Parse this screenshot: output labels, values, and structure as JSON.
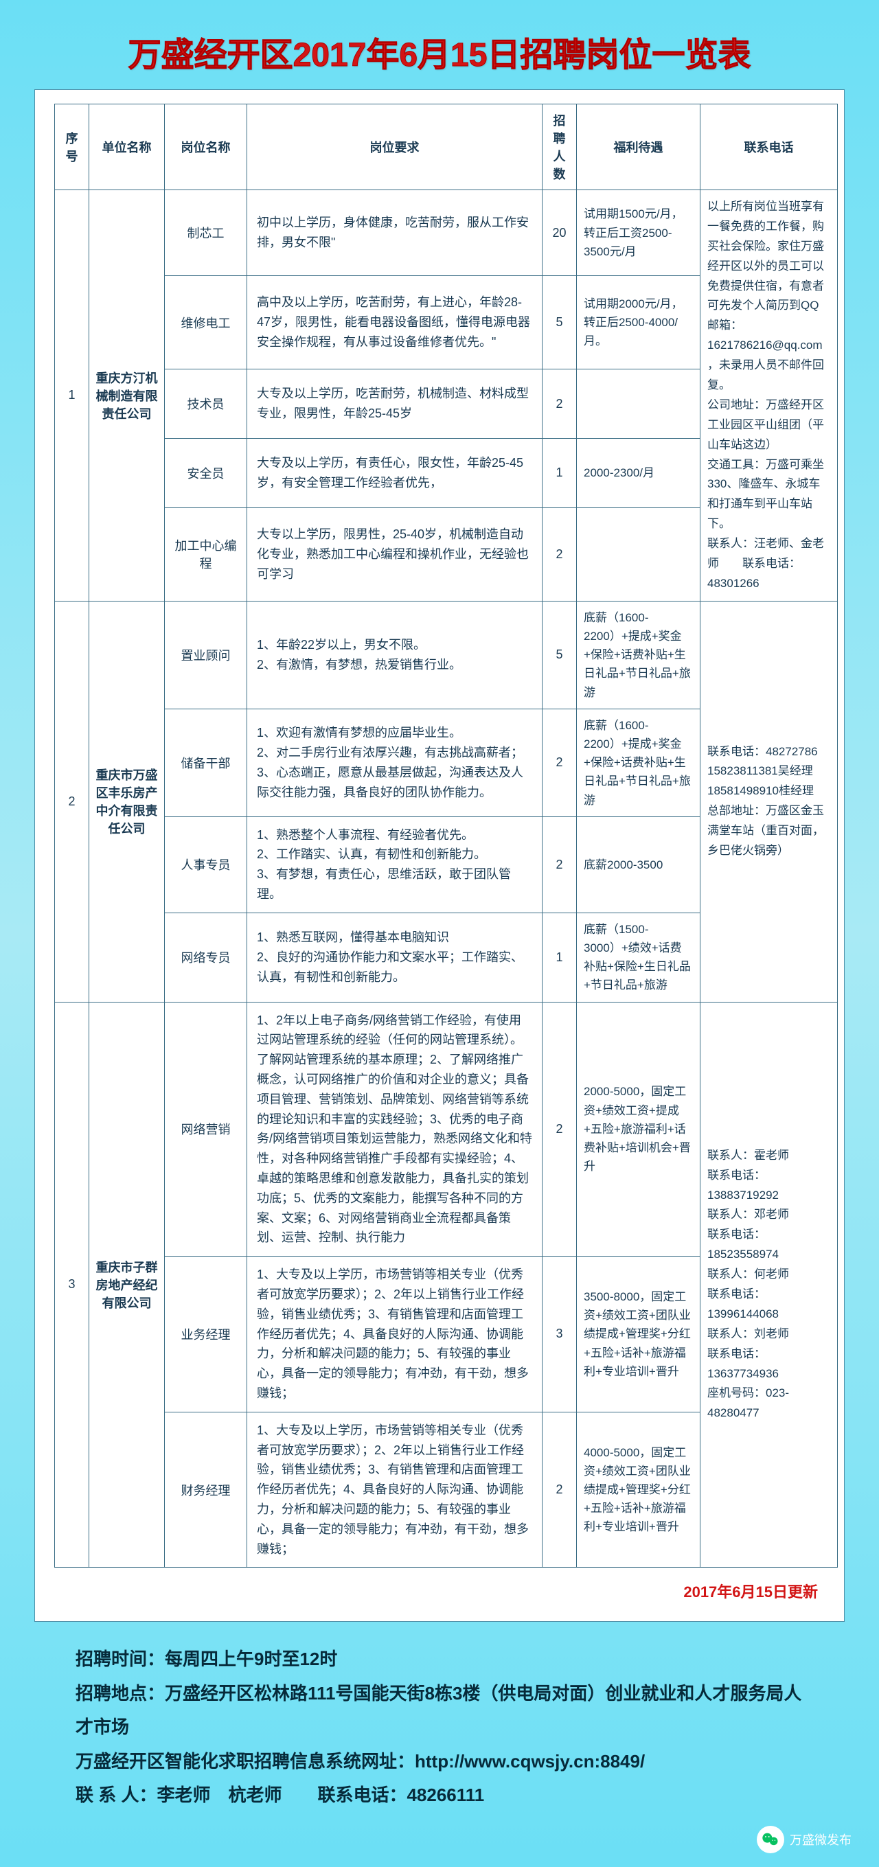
{
  "title": "万盛经开区2017年6月15日招聘岗位一览表",
  "headers": {
    "seq": "序号",
    "company": "单位名称",
    "position": "岗位名称",
    "requirement": "岗位要求",
    "count": "招聘人数",
    "benefit": "福利待遇",
    "contact": "联系电话"
  },
  "groups": [
    {
      "seq": "1",
      "company": "重庆方汀机械制造有限责任公司",
      "contact": "以上所有岗位当班享有一餐免费的工作餐，购买社会保险。家住万盛经开区以外的员工可以免费提供住宿，有意者可先发个人简历到QQ邮箱：1621786216@qq.com，未录用人员不邮件回复。\n公司地址：万盛经开区工业园区平山组团（平山车站这边）\n交通工具：万盛可乘坐330、隆盛车、永城车和打通车到平山车站下。\n联系人：汪老师、金老师　　联系电话：48301266",
      "rows": [
        {
          "position": "制芯工",
          "requirement": "初中以上学历，身体健康，吃苦耐劳，服从工作安排，男女不限\"",
          "count": "20",
          "benefit": "试用期1500元/月，转正后工资2500-3500元/月"
        },
        {
          "position": "维修电工",
          "requirement": "高中及以上学历，吃苦耐劳，有上进心，年龄28-47岁，限男性，能看电器设备图纸，懂得电源电器安全操作规程，有从事过设备维修者优先。\"",
          "count": "5",
          "benefit": "试用期2000元/月，转正后2500-4000/月。"
        },
        {
          "position": "技术员",
          "requirement": "大专及以上学历，吃苦耐劳，机械制造、材料成型专业，限男性，年龄25-45岁",
          "count": "2",
          "benefit": ""
        },
        {
          "position": "安全员",
          "requirement": "大专及以上学历，有责任心，限女性，年龄25-45岁，有安全管理工作经验者优先，",
          "count": "1",
          "benefit": "2000-2300/月"
        },
        {
          "position": "加工中心编程",
          "requirement": "大专以上学历，限男性，25-40岁，机械制造自动化专业，熟悉加工中心编程和操机作业，无经验也可学习",
          "count": "2",
          "benefit": ""
        }
      ]
    },
    {
      "seq": "2",
      "company": "重庆市万盛区丰乐房产中介有限责任公司",
      "contact": "联系电话：48272786\n15823811381吴经理\n18581498910桂经理\n总部地址：万盛区金玉满堂车站（重百对面，乡巴佬火锅旁）",
      "rows": [
        {
          "position": "置业顾问",
          "requirement": "1、年龄22岁以上，男女不限。\n2、有激情，有梦想，热爱销售行业。",
          "count": "5",
          "benefit": "底薪（1600-2200）+提成+奖金+保险+话费补贴+生日礼品+节日礼品+旅游"
        },
        {
          "position": "储备干部",
          "requirement": "1、欢迎有激情有梦想的应届毕业生。\n2、对二手房行业有浓厚兴趣，有志挑战高薪者；\n3、心态端正，愿意从最基层做起，沟通表达及人际交往能力强，具备良好的团队协作能力。",
          "count": "2",
          "benefit": "底薪（1600-2200）+提成+奖金+保险+话费补贴+生日礼品+节日礼品+旅游"
        },
        {
          "position": "人事专员",
          "requirement": "1、熟悉整个人事流程、有经验者优先。\n2、工作踏实、认真，有韧性和创新能力。\n3、有梦想，有责任心，思维活跃，敢于团队管理。",
          "count": "2",
          "benefit": "底薪2000-3500"
        },
        {
          "position": "网络专员",
          "requirement": "1、熟悉互联网，懂得基本电脑知识\n2、良好的沟通协作能力和文案水平；工作踏实、认真，有韧性和创新能力。",
          "count": "1",
          "benefit": "底薪（1500-3000）+绩效+话费补贴+保险+生日礼品+节日礼品+旅游"
        }
      ]
    },
    {
      "seq": "3",
      "company": "重庆市子群房地产经纪有限公司",
      "contact": "联系人：霍老师\n联系电话：13883719292\n联系人：邓老师\n联系电话：18523558974\n联系人：何老师\n联系电话：13996144068\n联系人：刘老师\n联系电话：13637734936\n座机号码：023-48280477",
      "rows": [
        {
          "position": "网络营销",
          "requirement": "1、2年以上电子商务/网络营销工作经验，有使用过网站管理系统的经验（任何的网站管理系统）。了解网站管理系统的基本原理；2、了解网络推广概念，认可网络推广的价值和对企业的意义；具备项目管理、营销策划、品牌策划、网络营销等系统的理论知识和丰富的实践经验；3、优秀的电子商务/网络营销项目策划运营能力，熟悉网络文化和特性，对各种网络营销推广手段都有实操经验；4、卓越的策略思维和创意发散能力，具备扎实的策划功底；5、优秀的文案能力，能撰写各种不同的方案、文案；6、对网络营销商业全流程都具备策划、运营、控制、执行能力",
          "count": "2",
          "benefit": "2000-5000，固定工资+绩效工资+提成+五险+旅游福利+话费补贴+培训机会+晋升"
        },
        {
          "position": "业务经理",
          "requirement": "1、大专及以上学历，市场营销等相关专业（优秀者可放宽学历要求）；2、2年以上销售行业工作经验，销售业绩优秀；3、有销售管理和店面管理工作经历者优先；4、具备良好的人际沟通、协调能力，分析和解决问题的能力；5、有较强的事业心，具备一定的领导能力；有冲劲，有干劲，想多赚钱；",
          "count": "3",
          "benefit": "3500-8000，固定工资+绩效工资+团队业绩提成+管理奖+分红+五险+话补+旅游福利+专业培训+晋升"
        },
        {
          "position": "财务经理",
          "requirement": "1、大专及以上学历，市场营销等相关专业（优秀者可放宽学历要求）；2、2年以上销售行业工作经验，销售业绩优秀；3、有销售管理和店面管理工作经历者优先；4、具备良好的人际沟通、协调能力，分析和解决问题的能力；5、有较强的事业心，具备一定的领导能力；有冲劲，有干劲，想多赚钱；",
          "count": "2",
          "benefit": "4000-5000，固定工资+绩效工资+团队业绩提成+管理奖+分红+五险+话补+旅游福利+专业培训+晋升"
        }
      ]
    }
  ],
  "update": "2017年6月15日更新",
  "footer": {
    "line1": "招聘时间：每周四上午9时至12时",
    "line2": "招聘地点：万盛经开区松林路111号国能天街8栋3楼（供电局对面）创业就业和人才服务局人才市场",
    "line3": "万盛经开区智能化求职招聘信息系统网址：http://www.cqwsjy.cn:8849/",
    "line4": "联 系 人：李老师　杭老师　　联系电话：48266111"
  },
  "wechat": "万盛微发布"
}
